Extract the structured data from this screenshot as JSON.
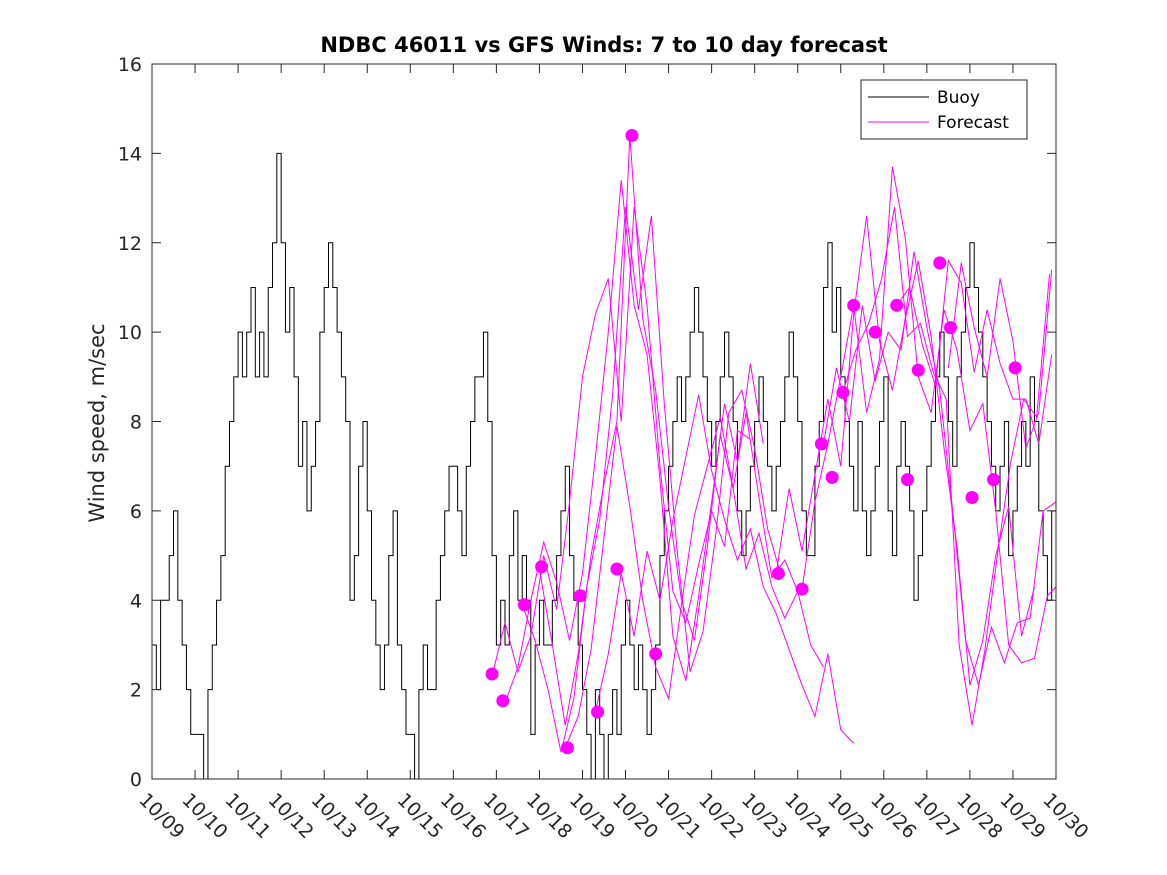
{
  "chart_data": {
    "type": "line",
    "title": "NDBC 46011 vs GFS Winds: 7 to 10 day forecast",
    "xlabel": "",
    "ylabel": "Wind speed, m/sec",
    "ylim": [
      0,
      16
    ],
    "yticks": [
      0,
      2,
      4,
      6,
      8,
      10,
      12,
      14,
      16
    ],
    "xlim": [
      0,
      21
    ],
    "xtick_labels": [
      "10/09",
      "10/10",
      "10/11",
      "10/12",
      "10/13",
      "10/14",
      "10/15",
      "10/16",
      "10/17",
      "10/18",
      "10/19",
      "10/20",
      "10/21",
      "10/22",
      "10/23",
      "10/24",
      "10/25",
      "10/26",
      "10/27",
      "10/28",
      "10/29",
      "10/30"
    ],
    "legend": {
      "placement": "top-right",
      "entries": [
        {
          "label": "Buoy",
          "color": "#000000"
        },
        {
          "label": "Forecast",
          "color": "#ff00ff"
        }
      ]
    },
    "colors": {
      "buoy": "#000000",
      "forecast": "#ff00ff"
    },
    "series": [
      {
        "name": "Buoy",
        "x": [
          0,
          0.1,
          0.2,
          0.3,
          0.4,
          0.5,
          0.6,
          0.7,
          0.8,
          0.9,
          1.0,
          1.1,
          1.2,
          1.3,
          1.4,
          1.5,
          1.6,
          1.7,
          1.8,
          1.9,
          2.0,
          2.1,
          2.2,
          2.3,
          2.4,
          2.5,
          2.6,
          2.7,
          2.8,
          2.9,
          3.0,
          3.1,
          3.2,
          3.3,
          3.4,
          3.5,
          3.6,
          3.7,
          3.8,
          3.9,
          4.0,
          4.1,
          4.2,
          4.3,
          4.4,
          4.5,
          4.6,
          4.7,
          4.8,
          4.9,
          5.0,
          5.1,
          5.2,
          5.3,
          5.4,
          5.5,
          5.6,
          5.7,
          5.8,
          5.9,
          6.0,
          6.1,
          6.2,
          6.3,
          6.4,
          6.5,
          6.6,
          6.7,
          6.8,
          6.9,
          7.0,
          7.1,
          7.2,
          7.3,
          7.4,
          7.5,
          7.6,
          7.7,
          7.8,
          7.9,
          8.0,
          8.1,
          8.2,
          8.3,
          8.4,
          8.5,
          8.6,
          8.7,
          8.8,
          8.9,
          9.0,
          9.1,
          9.2,
          9.3,
          9.4,
          9.5,
          9.6,
          9.7,
          9.8,
          9.9,
          10.0,
          10.1,
          10.2,
          10.3,
          10.4,
          10.5,
          10.6,
          10.7,
          10.8,
          10.9,
          11.0,
          11.1,
          11.2,
          11.3,
          11.4,
          11.5,
          11.6,
          11.7,
          11.8,
          11.9,
          12.0,
          12.1,
          12.2,
          12.3,
          12.4,
          12.5,
          12.6,
          12.7,
          12.8,
          12.9,
          13.0,
          13.1,
          13.2,
          13.3,
          13.4,
          13.5,
          13.6,
          13.7,
          13.8,
          13.9,
          14.0,
          14.1,
          14.2,
          14.3,
          14.4,
          14.5,
          14.6,
          14.7,
          14.8,
          14.9,
          15.0,
          15.1,
          15.2,
          15.3,
          15.4,
          15.5,
          15.6,
          15.7,
          15.8,
          15.9,
          16.0,
          16.1,
          16.2,
          16.3,
          16.4,
          16.5,
          16.6,
          16.7,
          16.8,
          16.9,
          17.0,
          17.1,
          17.2,
          17.3,
          17.4,
          17.5,
          17.6,
          17.7,
          17.8,
          17.9,
          18.0,
          18.1,
          18.2,
          18.3,
          18.4,
          18.5,
          18.6,
          18.7,
          18.8,
          18.9,
          19.0,
          19.1,
          19.2,
          19.3,
          19.4,
          19.5,
          19.6,
          19.7,
          19.8,
          19.9,
          20.0,
          20.1,
          20.2,
          20.3,
          20.4,
          20.5,
          20.6,
          20.7,
          20.8,
          20.9,
          21.0
        ],
        "y": [
          3,
          2,
          4,
          4,
          5,
          6,
          4,
          3,
          2,
          1,
          1,
          1,
          0,
          2,
          3,
          4,
          5,
          7,
          8,
          9,
          10,
          9,
          10,
          11,
          9,
          10,
          9,
          11,
          12,
          14,
          12,
          10,
          11,
          9,
          7,
          8,
          6,
          7,
          8,
          10,
          11,
          12,
          11,
          10,
          9,
          8,
          4,
          5,
          7,
          8,
          6,
          4,
          3,
          2,
          3,
          5,
          6,
          3,
          2,
          1,
          1,
          0,
          2,
          3,
          2,
          2,
          4,
          5,
          6,
          7,
          7,
          6,
          5,
          7,
          8,
          9,
          9,
          10,
          8,
          5,
          3,
          4,
          3,
          5,
          6,
          4,
          5,
          4,
          1,
          3,
          4,
          3,
          3,
          4,
          5,
          6,
          7,
          5,
          4,
          3,
          2,
          1,
          0,
          2,
          1,
          0,
          1,
          2,
          1,
          3,
          4,
          3,
          2,
          3,
          2,
          1,
          2,
          3,
          5,
          6,
          7,
          8,
          9,
          8,
          9,
          10,
          11,
          10,
          9,
          8,
          7,
          8,
          9,
          10,
          9,
          8,
          6,
          5,
          6,
          7,
          8,
          9,
          8,
          7,
          6,
          7,
          8,
          9,
          10,
          9,
          8,
          6,
          5,
          5,
          7,
          8,
          11,
          12,
          10,
          11,
          9,
          8,
          7,
          6,
          8,
          6,
          5,
          6,
          7,
          8,
          9,
          6,
          5,
          7,
          8,
          7,
          6,
          4,
          5,
          6,
          7,
          8,
          9,
          10,
          9,
          8,
          7,
          9,
          10,
          11,
          12,
          11,
          10,
          9,
          8,
          7,
          6,
          7,
          8,
          5,
          6,
          7,
          8,
          7,
          9,
          8,
          6,
          5,
          4,
          6,
          6
        ]
      },
      {
        "name": "Forecast",
        "markers": {
          "x": [
            7.9,
            8.15,
            8.65,
            9.05,
            9.65,
            9.95,
            10.35,
            10.8,
            11.15,
            11.7,
            14.55,
            15.1,
            15.55,
            15.8,
            16.05,
            16.3,
            16.8,
            17.3,
            17.55,
            17.8,
            18.3,
            18.55,
            19.05,
            19.55,
            20.05
          ],
          "y": [
            2.35,
            1.75,
            3.9,
            4.75,
            0.7,
            4.1,
            1.5,
            4.7,
            14.4,
            2.8,
            4.6,
            4.25,
            7.5,
            6.75,
            8.65,
            10.6,
            10.0,
            10.6,
            6.7,
            9.15,
            11.55,
            10.1,
            6.3,
            6.7,
            9.2
          ]
        },
        "traces": [
          {
            "x": [
              7.9,
              8.2,
              8.5,
              8.8,
              9.1,
              9.4,
              9.7,
              10.0,
              10.3,
              10.6,
              10.9,
              11.2,
              11.5,
              11.8,
              12.1,
              12.4,
              12.7,
              13.0,
              13.3,
              13.6,
              13.9
            ],
            "y": [
              2.3,
              3.5,
              2.4,
              3.2,
              5.0,
              3.8,
              6.2,
              9.0,
              10.4,
              11.2,
              8.0,
              12.8,
              10.6,
              7.0,
              4.2,
              3.5,
              4.8,
              6.0,
              5.2,
              7.8,
              7.6
            ]
          },
          {
            "x": [
              8.2,
              8.5,
              8.8,
              9.1,
              9.4,
              9.7,
              10.0,
              10.3,
              10.6,
              10.9,
              11.2,
              11.5,
              11.8,
              12.1,
              12.4,
              12.7,
              13.0,
              13.3,
              13.6,
              13.9,
              14.2
            ],
            "y": [
              1.7,
              2.5,
              4.0,
              5.3,
              4.4,
              3.1,
              4.6,
              7.2,
              10.0,
              13.4,
              10.6,
              9.5,
              6.7,
              3.2,
              2.2,
              4.1,
              6.2,
              8.4,
              7.1,
              9.3,
              7.5
            ]
          },
          {
            "x": [
              8.6,
              8.9,
              9.2,
              9.5,
              9.8,
              10.1,
              10.4,
              10.7,
              11.0,
              11.3,
              11.6,
              11.9,
              12.2,
              12.5,
              12.8,
              13.1,
              13.4,
              13.7,
              14.0,
              14.3,
              14.6
            ],
            "y": [
              3.9,
              3.1,
              2.0,
              0.6,
              1.8,
              4.3,
              5.8,
              8.6,
              12.8,
              10.5,
              12.6,
              8.4,
              5.1,
              2.4,
              3.3,
              5.5,
              8.2,
              8.7,
              7.4,
              5.6,
              4.6
            ]
          },
          {
            "x": [
              9.0,
              9.3,
              9.6,
              9.9,
              10.2,
              10.5,
              10.8,
              11.1,
              11.4,
              11.7,
              12.0,
              12.3,
              12.6,
              12.9,
              13.2,
              13.5,
              13.8,
              14.1,
              14.4,
              14.7,
              15.0
            ],
            "y": [
              4.7,
              3.0,
              1.2,
              2.8,
              5.0,
              6.6,
              8.0,
              14.4,
              10.3,
              8.7,
              6.1,
              4.0,
              3.1,
              5.2,
              7.7,
              6.5,
              8.2,
              6.3,
              4.5,
              4.9,
              4.2
            ]
          },
          {
            "x": [
              9.6,
              9.9,
              10.2,
              10.5,
              10.8,
              11.1,
              11.4,
              11.7,
              12.0,
              12.3,
              12.6,
              12.9,
              13.2,
              13.5,
              13.8,
              14.1,
              14.4,
              14.7,
              15.0,
              15.3,
              15.6
            ],
            "y": [
              0.7,
              1.4,
              2.9,
              5.4,
              7.9,
              6.1,
              4.0,
              2.5,
              1.8,
              3.9,
              5.9,
              7.0,
              8.1,
              6.5,
              4.7,
              5.5,
              4.3,
              3.6,
              4.2,
              3.0,
              2.5
            ]
          },
          {
            "x": [
              10.3,
              10.6,
              10.9,
              11.2,
              11.5,
              11.8,
              12.1,
              12.4,
              12.7,
              13.0,
              13.3,
              13.6,
              13.9,
              14.2,
              14.5,
              14.8,
              15.1,
              15.4,
              15.7,
              16.0,
              16.3
            ],
            "y": [
              1.5,
              2.8,
              4.6,
              3.2,
              5.1,
              4.0,
              5.8,
              7.2,
              8.6,
              6.9,
              5.8,
              4.9,
              5.6,
              4.3,
              3.7,
              2.9,
              2.1,
              1.4,
              2.8,
              1.1,
              0.8
            ]
          },
          {
            "x": [
              14.5,
              14.8,
              15.1,
              15.4,
              15.7,
              16.0,
              16.3,
              16.6,
              16.9,
              17.2,
              17.5,
              17.8,
              18.1,
              18.4,
              18.7,
              19.0,
              19.3,
              19.6,
              19.9,
              20.2,
              20.5
            ],
            "y": [
              4.6,
              6.5,
              5.1,
              6.8,
              8.5,
              7.0,
              10.4,
              12.6,
              9.8,
              8.7,
              10.3,
              11.6,
              9.9,
              7.4,
              5.2,
              2.1,
              3.1,
              5.0,
              6.1,
              3.2,
              4.3
            ]
          },
          {
            "x": [
              15.1,
              15.4,
              15.7,
              16.0,
              16.3,
              16.6,
              16.9,
              17.2,
              17.5,
              17.8,
              18.1,
              18.4,
              18.7,
              19.0,
              19.3,
              19.6,
              19.9,
              20.2,
              20.5,
              20.8,
              21.0
            ],
            "y": [
              4.25,
              6.2,
              7.5,
              9.0,
              10.6,
              8.2,
              9.4,
              13.7,
              12.1,
              9.0,
              8.2,
              10.5,
              9.6,
              7.8,
              8.4,
              6.0,
              3.0,
              2.6,
              2.7,
              4.1,
              4.3
            ]
          },
          {
            "x": [
              15.6,
              15.9,
              16.2,
              16.5,
              16.8,
              17.1,
              17.4,
              17.7,
              18.0,
              18.3,
              18.6,
              18.9,
              19.2,
              19.5,
              19.8,
              20.1,
              20.4,
              20.7,
              21.0
            ],
            "y": [
              7.5,
              9.2,
              8.0,
              10.6,
              8.9,
              10.0,
              9.6,
              11.8,
              10.1,
              8.7,
              6.0,
              3.1,
              2.1,
              3.4,
              2.6,
              3.5,
              3.6,
              6.0,
              6.2
            ]
          },
          {
            "x": [
              16.05,
              16.35,
              16.65,
              16.95,
              17.25,
              17.55,
              17.85,
              18.15,
              18.45,
              18.75,
              19.05,
              19.35,
              19.65,
              19.95,
              20.25,
              20.55,
              20.85
            ],
            "y": [
              8.65,
              9.6,
              10.2,
              11.2,
              12.8,
              9.9,
              10.2,
              9.1,
              8.5,
              3.0,
              1.2,
              2.9,
              5.1,
              7.1,
              8.5,
              8.1,
              11.3
            ]
          },
          {
            "x": [
              17.3,
              17.6,
              17.9,
              18.2,
              18.5,
              18.8,
              19.1,
              19.4,
              19.7,
              20.0,
              20.3,
              20.6,
              20.9
            ],
            "y": [
              10.6,
              11.0,
              9.7,
              8.8,
              11.6,
              11.1,
              9.1,
              10.5,
              9.3,
              8.5,
              8.5,
              7.5,
              9.5
            ]
          },
          {
            "x": [
              18.5,
              18.8,
              19.1,
              19.4,
              19.7,
              20.0,
              20.3,
              20.6,
              20.9
            ],
            "y": [
              9.2,
              11.55,
              10.1,
              9.0,
              11.2,
              9.8,
              7.4,
              8.2,
              11.4
            ]
          }
        ]
      }
    ]
  }
}
